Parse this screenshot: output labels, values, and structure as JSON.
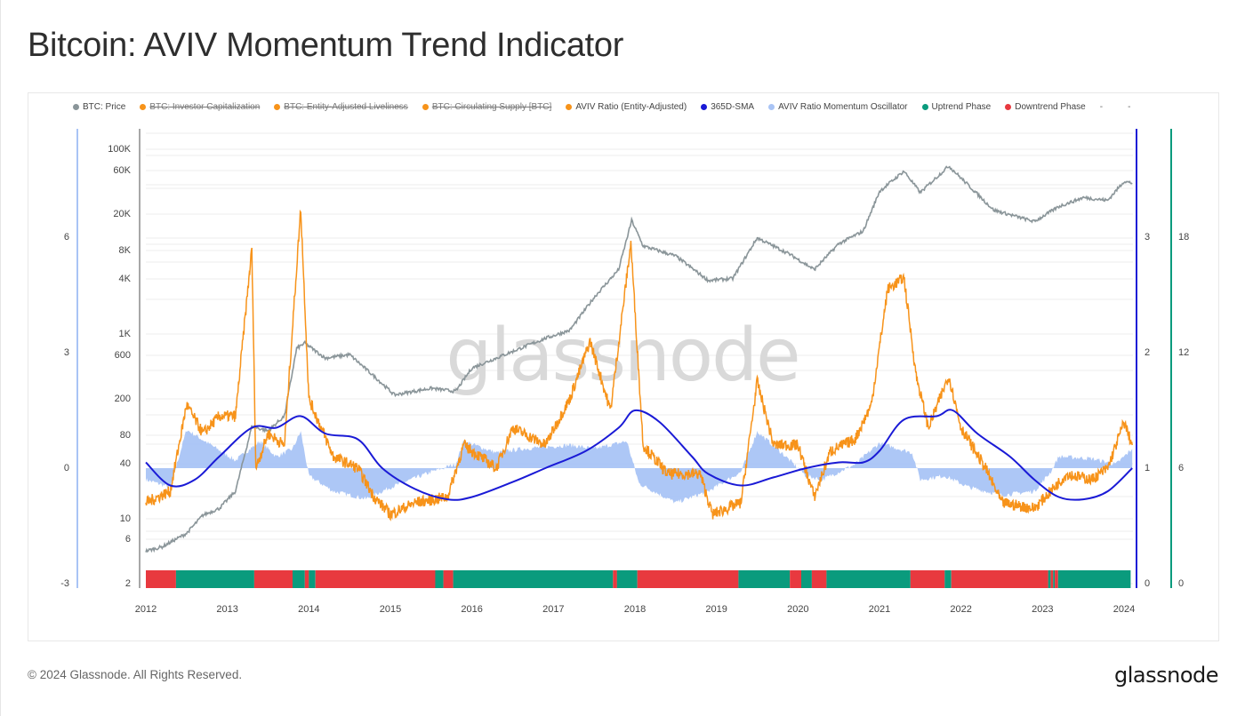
{
  "page": {
    "title": "Bitcoin: AVIV Momentum Trend Indicator",
    "footer_copyright": "© 2024 Glassnode. All Rights Reserved.",
    "footer_logo": "glassnode",
    "watermark": "glassnode"
  },
  "legend": [
    {
      "label": "BTC: Price",
      "color": "#8a9599",
      "disabled": false
    },
    {
      "label": "BTC: Investor Capitalization",
      "color": "#f7931a",
      "disabled": true
    },
    {
      "label": "BTC: Entity-Adjusted Liveliness",
      "color": "#f7931a",
      "disabled": true
    },
    {
      "label": "BTC: Circulating Supply [BTC]",
      "color": "#f7931a",
      "disabled": true
    },
    {
      "label": "AVIV Ratio (Entity-Adjusted)",
      "color": "#f7931a",
      "disabled": false
    },
    {
      "label": "365D-SMA",
      "color": "#1a1ad6",
      "disabled": false
    },
    {
      "label": "AVIV Ratio Momentum Oscillator",
      "color": "#a9c4f5",
      "disabled": false
    },
    {
      "label": "Uptrend Phase",
      "color": "#0a9b7d",
      "disabled": false
    },
    {
      "label": "Downtrend Phase",
      "color": "#e8393f",
      "disabled": false
    },
    {
      "label": "-",
      "color": null,
      "disabled": false
    },
    {
      "label": "-",
      "color": null,
      "disabled": false
    }
  ],
  "axes": {
    "oscillator_left": {
      "ticks": [
        "6",
        "3",
        "0",
        "-3"
      ],
      "color": "#a9c4f5"
    },
    "price_left": {
      "ticks": [
        "100K",
        "60K",
        "20K",
        "8K",
        "4K",
        "1K",
        "600",
        "200",
        "80",
        "40",
        "10",
        "6",
        "2"
      ],
      "scale": "log"
    },
    "aviv_right": {
      "ticks": [
        "3",
        "2",
        "1",
        "0"
      ],
      "color": "#1a1ad6"
    },
    "phase_right": {
      "ticks": [
        "18",
        "12",
        "6",
        "0"
      ],
      "color": "#0a9b7d"
    },
    "x": {
      "ticks": [
        "2012",
        "2013",
        "2014",
        "2015",
        "2016",
        "2017",
        "2018",
        "2019",
        "2020",
        "2021",
        "2022",
        "2023",
        "2024"
      ]
    }
  },
  "chart_data": {
    "type": "line",
    "title": "Bitcoin: AVIV Momentum Trend Indicator",
    "xlabel": "",
    "ylabel": "",
    "x_range": [
      "2012-01",
      "2024-02"
    ],
    "grid": true,
    "legend_position": "top",
    "series": [
      {
        "name": "BTC: Price",
        "axis": "price_left (log)",
        "color": "#8a9599",
        "points": [
          [
            2012.0,
            4.5
          ],
          [
            2012.2,
            5
          ],
          [
            2012.5,
            7
          ],
          [
            2012.7,
            11
          ],
          [
            2012.9,
            13
          ],
          [
            2013.1,
            20
          ],
          [
            2013.3,
            100
          ],
          [
            2013.5,
            90
          ],
          [
            2013.7,
            130
          ],
          [
            2013.85,
            700
          ],
          [
            2013.95,
            800
          ],
          [
            2014.2,
            550
          ],
          [
            2014.5,
            600
          ],
          [
            2014.8,
            350
          ],
          [
            2015.05,
            220
          ],
          [
            2015.5,
            260
          ],
          [
            2015.8,
            240
          ],
          [
            2016.0,
            430
          ],
          [
            2016.5,
            650
          ],
          [
            2016.9,
            900
          ],
          [
            2017.2,
            1100
          ],
          [
            2017.5,
            2500
          ],
          [
            2017.8,
            5000
          ],
          [
            2017.96,
            17000
          ],
          [
            2018.1,
            9000
          ],
          [
            2018.5,
            7000
          ],
          [
            2018.9,
            3800
          ],
          [
            2019.2,
            4000
          ],
          [
            2019.5,
            11000
          ],
          [
            2019.9,
            7300
          ],
          [
            2020.2,
            5000
          ],
          [
            2020.5,
            9500
          ],
          [
            2020.8,
            13000
          ],
          [
            2021.0,
            35000
          ],
          [
            2021.3,
            58000
          ],
          [
            2021.5,
            34000
          ],
          [
            2021.85,
            66000
          ],
          [
            2022.1,
            40000
          ],
          [
            2022.4,
            22000
          ],
          [
            2022.9,
            16500
          ],
          [
            2023.2,
            24000
          ],
          [
            2023.5,
            30000
          ],
          [
            2023.8,
            28000
          ],
          [
            2024.0,
            45000
          ],
          [
            2024.1,
            43000
          ]
        ]
      },
      {
        "name": "AVIV Ratio (Entity-Adjusted)",
        "axis": "aviv_right",
        "color": "#f7931a",
        "points": [
          [
            2012.0,
            0.7
          ],
          [
            2012.3,
            0.8
          ],
          [
            2012.5,
            1.55
          ],
          [
            2012.7,
            1.3
          ],
          [
            2012.9,
            1.45
          ],
          [
            2013.1,
            1.45
          ],
          [
            2013.3,
            2.9
          ],
          [
            2013.35,
            1.0
          ],
          [
            2013.5,
            1.3
          ],
          [
            2013.7,
            1.2
          ],
          [
            2013.9,
            3.25
          ],
          [
            2014.0,
            1.6
          ],
          [
            2014.3,
            1.1
          ],
          [
            2014.6,
            1.0
          ],
          [
            2014.8,
            0.75
          ],
          [
            2015.0,
            0.6
          ],
          [
            2015.3,
            0.7
          ],
          [
            2015.7,
            0.75
          ],
          [
            2015.9,
            1.2
          ],
          [
            2016.3,
            1.0
          ],
          [
            2016.5,
            1.35
          ],
          [
            2016.9,
            1.2
          ],
          [
            2017.2,
            1.6
          ],
          [
            2017.45,
            2.1
          ],
          [
            2017.7,
            1.5
          ],
          [
            2017.95,
            2.95
          ],
          [
            2018.1,
            1.2
          ],
          [
            2018.4,
            0.95
          ],
          [
            2018.8,
            0.95
          ],
          [
            2018.95,
            0.6
          ],
          [
            2019.3,
            0.7
          ],
          [
            2019.5,
            1.75
          ],
          [
            2019.7,
            1.2
          ],
          [
            2020.0,
            1.2
          ],
          [
            2020.2,
            0.75
          ],
          [
            2020.4,
            1.15
          ],
          [
            2020.7,
            1.25
          ],
          [
            2020.9,
            1.55
          ],
          [
            2021.1,
            2.55
          ],
          [
            2021.3,
            2.65
          ],
          [
            2021.45,
            1.8
          ],
          [
            2021.6,
            1.35
          ],
          [
            2021.85,
            1.8
          ],
          [
            2022.0,
            1.35
          ],
          [
            2022.3,
            1.0
          ],
          [
            2022.5,
            0.7
          ],
          [
            2022.9,
            0.65
          ],
          [
            2023.1,
            0.8
          ],
          [
            2023.3,
            0.95
          ],
          [
            2023.6,
            0.9
          ],
          [
            2023.8,
            1.0
          ],
          [
            2024.0,
            1.4
          ],
          [
            2024.1,
            1.2
          ]
        ]
      },
      {
        "name": "365D-SMA",
        "axis": "aviv_right",
        "color": "#1a1ad6",
        "points": [
          [
            2012.0,
            1.05
          ],
          [
            2012.3,
            0.85
          ],
          [
            2012.6,
            0.9
          ],
          [
            2012.9,
            1.1
          ],
          [
            2013.3,
            1.35
          ],
          [
            2013.6,
            1.35
          ],
          [
            2013.9,
            1.45
          ],
          [
            2014.2,
            1.3
          ],
          [
            2014.6,
            1.25
          ],
          [
            2014.9,
            1.0
          ],
          [
            2015.3,
            0.82
          ],
          [
            2015.7,
            0.73
          ],
          [
            2016.0,
            0.75
          ],
          [
            2016.5,
            0.88
          ],
          [
            2016.9,
            1.0
          ],
          [
            2017.4,
            1.15
          ],
          [
            2017.8,
            1.35
          ],
          [
            2018.0,
            1.5
          ],
          [
            2018.3,
            1.4
          ],
          [
            2018.7,
            1.1
          ],
          [
            2018.9,
            0.95
          ],
          [
            2019.3,
            0.85
          ],
          [
            2019.7,
            0.92
          ],
          [
            2020.1,
            1.0
          ],
          [
            2020.5,
            1.05
          ],
          [
            2020.8,
            1.05
          ],
          [
            2021.0,
            1.15
          ],
          [
            2021.3,
            1.42
          ],
          [
            2021.7,
            1.45
          ],
          [
            2021.9,
            1.5
          ],
          [
            2022.2,
            1.3
          ],
          [
            2022.6,
            1.1
          ],
          [
            2022.9,
            0.9
          ],
          [
            2023.2,
            0.75
          ],
          [
            2023.5,
            0.73
          ],
          [
            2023.8,
            0.8
          ],
          [
            2024.1,
            1.0
          ]
        ]
      },
      {
        "name": "AVIV Ratio Momentum Oscillator",
        "axis": "oscillator_left",
        "type": "area",
        "color": "#a9c4f5",
        "points": [
          [
            2012.0,
            -0.3
          ],
          [
            2012.3,
            -0.5
          ],
          [
            2012.5,
            1.0
          ],
          [
            2012.8,
            0.6
          ],
          [
            2013.1,
            0.2
          ],
          [
            2013.4,
            0.7
          ],
          [
            2013.6,
            0.3
          ],
          [
            2013.8,
            0.5
          ],
          [
            2013.9,
            0.95
          ],
          [
            2014.0,
            -0.2
          ],
          [
            2014.3,
            -0.6
          ],
          [
            2014.7,
            -0.8
          ],
          [
            2015.0,
            -0.5
          ],
          [
            2015.5,
            -0.1
          ],
          [
            2015.8,
            0.1
          ],
          [
            2015.9,
            0.7
          ],
          [
            2016.3,
            0.4
          ],
          [
            2016.6,
            0.5
          ],
          [
            2017.2,
            0.6
          ],
          [
            2017.5,
            0.5
          ],
          [
            2017.9,
            0.7
          ],
          [
            2018.05,
            -0.4
          ],
          [
            2018.5,
            -0.9
          ],
          [
            2018.9,
            -0.6
          ],
          [
            2019.3,
            -0.1
          ],
          [
            2019.5,
            0.95
          ],
          [
            2019.8,
            0.4
          ],
          [
            2020.1,
            -0.2
          ],
          [
            2020.3,
            -0.3
          ],
          [
            2020.7,
            0.1
          ],
          [
            2021.0,
            0.65
          ],
          [
            2021.4,
            0.4
          ],
          [
            2021.5,
            -0.3
          ],
          [
            2021.8,
            -0.2
          ],
          [
            2022.1,
            -0.5
          ],
          [
            2022.5,
            -0.7
          ],
          [
            2022.9,
            -0.6
          ],
          [
            2023.1,
            -0.1
          ],
          [
            2023.2,
            0.3
          ],
          [
            2023.6,
            0.25
          ],
          [
            2023.9,
            0.1
          ],
          [
            2024.1,
            0.5
          ]
        ]
      }
    ],
    "phases": [
      {
        "start": 2012.0,
        "end": 2012.37,
        "phase": "Downtrend"
      },
      {
        "start": 2012.37,
        "end": 2013.33,
        "phase": "Uptrend"
      },
      {
        "start": 2013.33,
        "end": 2013.8,
        "phase": "Downtrend"
      },
      {
        "start": 2013.8,
        "end": 2013.95,
        "phase": "Uptrend"
      },
      {
        "start": 2013.95,
        "end": 2014.0,
        "phase": "Downtrend"
      },
      {
        "start": 2014.0,
        "end": 2014.08,
        "phase": "Uptrend"
      },
      {
        "start": 2014.08,
        "end": 2015.55,
        "phase": "Downtrend"
      },
      {
        "start": 2015.55,
        "end": 2015.65,
        "phase": "Uptrend"
      },
      {
        "start": 2015.65,
        "end": 2015.77,
        "phase": "Downtrend"
      },
      {
        "start": 2015.77,
        "end": 2017.73,
        "phase": "Uptrend"
      },
      {
        "start": 2017.73,
        "end": 2017.78,
        "phase": "Downtrend"
      },
      {
        "start": 2017.78,
        "end": 2018.03,
        "phase": "Uptrend"
      },
      {
        "start": 2018.03,
        "end": 2019.27,
        "phase": "Downtrend"
      },
      {
        "start": 2019.27,
        "end": 2019.9,
        "phase": "Uptrend"
      },
      {
        "start": 2019.9,
        "end": 2020.04,
        "phase": "Downtrend"
      },
      {
        "start": 2020.04,
        "end": 2020.17,
        "phase": "Uptrend"
      },
      {
        "start": 2020.17,
        "end": 2020.35,
        "phase": "Downtrend"
      },
      {
        "start": 2020.35,
        "end": 2021.38,
        "phase": "Uptrend"
      },
      {
        "start": 2021.38,
        "end": 2021.8,
        "phase": "Downtrend"
      },
      {
        "start": 2021.8,
        "end": 2021.88,
        "phase": "Uptrend"
      },
      {
        "start": 2021.88,
        "end": 2023.07,
        "phase": "Downtrend"
      },
      {
        "start": 2023.07,
        "end": 2023.1,
        "phase": "Uptrend"
      },
      {
        "start": 2023.1,
        "end": 2023.13,
        "phase": "Downtrend"
      },
      {
        "start": 2023.13,
        "end": 2023.15,
        "phase": "Uptrend"
      },
      {
        "start": 2023.15,
        "end": 2023.19,
        "phase": "Downtrend"
      },
      {
        "start": 2023.19,
        "end": 2024.08,
        "phase": "Uptrend"
      }
    ]
  }
}
